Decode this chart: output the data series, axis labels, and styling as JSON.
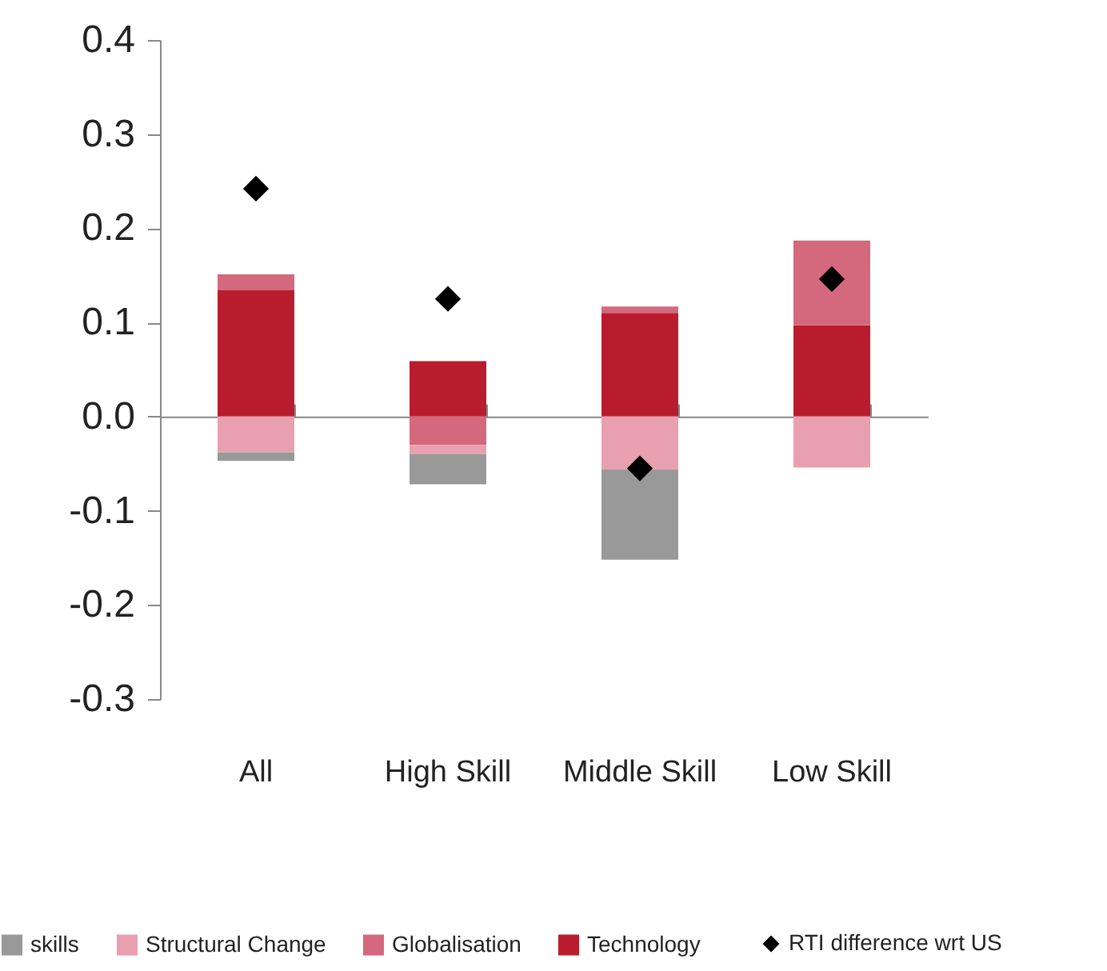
{
  "chart_data": {
    "type": "bar",
    "stacked": true,
    "categories": [
      "All",
      "High Skill",
      "Middle Skill",
      "Low Skill"
    ],
    "series": [
      {
        "name": "Technology",
        "color": "#b91c2c",
        "values": [
          0.134,
          0.059,
          0.11,
          0.097
        ]
      },
      {
        "name": "Globalisation",
        "color": "#d4687d",
        "values": [
          0.017,
          -0.03,
          0.007,
          0.09
        ]
      },
      {
        "name": "Structural Change",
        "color": "#e8a0b0",
        "values": [
          -0.038,
          -0.01,
          -0.056,
          -0.054
        ]
      },
      {
        "name": "skills",
        "color": "#999999",
        "values": [
          -0.009,
          -0.032,
          -0.096,
          null
        ]
      },
      {
        "name": "RTI difference wrt US",
        "type": "scatter",
        "marker": "diamond",
        "color": "#000000",
        "x": [
          "All",
          "High Skill",
          "Middle Skill",
          "Low Skill"
        ],
        "values": [
          0.242,
          0.125,
          -0.055,
          0.146
        ]
      }
    ],
    "ylim": [
      -0.3,
      0.4
    ],
    "yticks": [
      -0.3,
      -0.2,
      -0.1,
      {
        "value": 0,
        "label": "0.0"
      },
      0.1,
      0.2,
      0.3,
      0.4
    ],
    "legend": "bottom"
  }
}
